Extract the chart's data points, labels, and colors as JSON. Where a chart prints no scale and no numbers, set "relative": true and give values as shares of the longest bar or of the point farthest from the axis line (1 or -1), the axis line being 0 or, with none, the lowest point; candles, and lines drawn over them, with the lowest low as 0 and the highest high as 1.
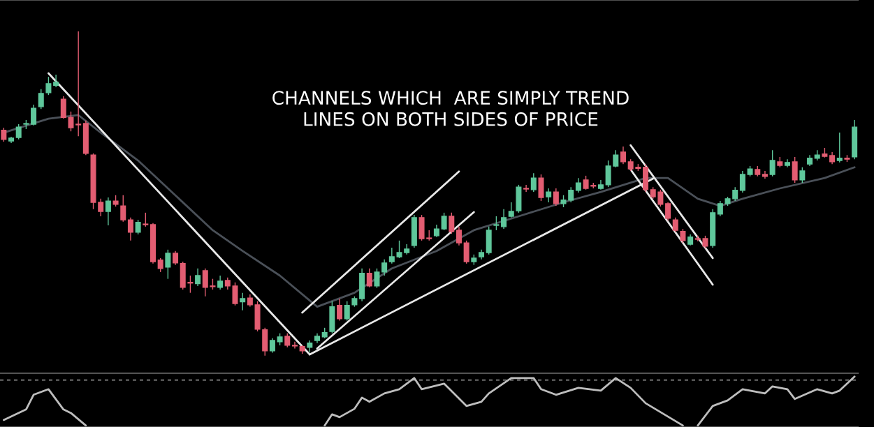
{
  "chart_data": [
    {
      "type": "candlestick",
      "relative": true,
      "annotations": [
        "CHANNELS WHICH  ARE SIMPLY TREND\nLINES ON BOTH SIDES OF PRICE"
      ],
      "categories": [
        null,
        null,
        null,
        null,
        null,
        null,
        null,
        null,
        null,
        null,
        null,
        null,
        null,
        null,
        null,
        null,
        null,
        null,
        null,
        null,
        null,
        null,
        null,
        null,
        null,
        null,
        null,
        null,
        null,
        null,
        null,
        null,
        null,
        null,
        null,
        null,
        null,
        null,
        null,
        null,
        null,
        null,
        null,
        null,
        null,
        null,
        null,
        null,
        null,
        null,
        null,
        null,
        null,
        null,
        null,
        null,
        null,
        null,
        null,
        null,
        null,
        null,
        null,
        null,
        null,
        null,
        null,
        null,
        null,
        null,
        null,
        null,
        null,
        null,
        null,
        null,
        null,
        null,
        null,
        null,
        null,
        null,
        null,
        null,
        null,
        null,
        null,
        null,
        null,
        null,
        null,
        null,
        null,
        null,
        null,
        null,
        null,
        null,
        null,
        null,
        null,
        null,
        null,
        null,
        null,
        null,
        null,
        null,
        null,
        null,
        null,
        null,
        null,
        null,
        null
      ],
      "ohlc": [
        [
          0.695,
          0.703,
          0.66,
          0.667
        ],
        [
          0.662,
          0.675,
          0.656,
          0.671
        ],
        [
          0.673,
          0.714,
          0.667,
          0.705
        ],
        [
          0.714,
          0.727,
          0.699,
          0.716
        ],
        [
          0.714,
          0.774,
          0.71,
          0.763
        ],
        [
          0.768,
          0.822,
          0.761,
          0.809
        ],
        [
          0.811,
          0.86,
          0.804,
          0.839
        ],
        [
          0.834,
          0.867,
          0.828,
          0.843
        ],
        [
          0.791,
          0.8,
          0.731,
          0.735
        ],
        [
          0.735,
          0.753,
          0.692,
          0.703
        ],
        [
          0.714,
          1.0,
          0.677,
          0.712
        ],
        [
          0.716,
          0.725,
          0.619,
          0.624
        ],
        [
          0.619,
          0.624,
          0.452,
          0.473
        ],
        [
          0.473,
          0.484,
          0.43,
          0.445
        ],
        [
          0.445,
          0.488,
          0.402,
          0.477
        ],
        [
          0.477,
          0.495,
          0.46,
          0.467
        ],
        [
          0.462,
          0.495,
          0.413,
          0.419
        ],
        [
          0.419,
          0.426,
          0.355,
          0.381
        ],
        [
          0.381,
          0.419,
          0.374,
          0.411
        ],
        [
          0.406,
          0.441,
          0.398,
          0.404
        ],
        [
          0.404,
          0.409,
          0.284,
          0.29
        ],
        [
          0.295,
          0.301,
          0.258,
          0.269
        ],
        [
          0.273,
          0.327,
          0.237,
          0.316
        ],
        [
          0.316,
          0.323,
          0.28,
          0.286
        ],
        [
          0.284,
          0.29,
          0.204,
          0.211
        ],
        [
          0.226,
          0.247,
          0.194,
          0.224
        ],
        [
          0.222,
          0.269,
          0.215,
          0.247
        ],
        [
          0.262,
          0.269,
          0.183,
          0.211
        ],
        [
          0.215,
          0.237,
          0.204,
          0.213
        ],
        [
          0.211,
          0.247,
          0.204,
          0.23
        ],
        [
          0.232,
          0.241,
          0.204,
          0.215
        ],
        [
          0.215,
          0.226,
          0.155,
          0.161
        ],
        [
          0.166,
          0.194,
          0.14,
          0.176
        ],
        [
          0.178,
          0.189,
          0.151,
          0.157
        ],
        [
          0.157,
          0.168,
          0.075,
          0.082
        ],
        [
          0.08,
          0.086,
          0.0,
          0.015
        ],
        [
          0.015,
          0.054,
          0.009,
          0.047
        ],
        [
          0.043,
          0.069,
          0.032,
          0.058
        ],
        [
          0.06,
          0.069,
          0.026,
          0.032
        ],
        [
          0.032,
          0.043,
          0.022,
          0.03
        ],
        [
          0.028,
          0.032,
          0.006,
          0.015
        ],
        [
          0.026,
          0.047,
          0.011,
          0.039
        ],
        [
          0.047,
          0.069,
          0.039,
          0.06
        ],
        [
          0.058,
          0.086,
          0.054,
          0.071
        ],
        [
          0.075,
          0.168,
          0.069,
          0.151
        ],
        [
          0.155,
          0.176,
          0.108,
          0.114
        ],
        [
          0.114,
          0.168,
          0.108,
          0.155
        ],
        [
          0.157,
          0.183,
          0.151,
          0.176
        ],
        [
          0.176,
          0.269,
          0.168,
          0.254
        ],
        [
          0.254,
          0.269,
          0.211,
          0.215
        ],
        [
          0.215,
          0.269,
          0.209,
          0.258
        ],
        [
          0.258,
          0.297,
          0.247,
          0.286
        ],
        [
          0.29,
          0.333,
          0.284,
          0.305
        ],
        [
          0.305,
          0.355,
          0.301,
          0.318
        ],
        [
          0.318,
          0.344,
          0.312,
          0.329
        ],
        [
          0.34,
          0.434,
          0.333,
          0.426
        ],
        [
          0.426,
          0.434,
          0.355,
          0.361
        ],
        [
          0.363,
          0.387,
          0.355,
          0.361
        ],
        [
          0.37,
          0.404,
          0.366,
          0.391
        ],
        [
          0.391,
          0.441,
          0.387,
          0.43
        ],
        [
          0.43,
          0.441,
          0.376,
          0.383
        ],
        [
          0.387,
          0.398,
          0.34,
          0.348
        ],
        [
          0.348,
          0.355,
          0.284,
          0.29
        ],
        [
          0.29,
          0.312,
          0.28,
          0.301
        ],
        [
          0.305,
          0.327,
          0.297,
          0.318
        ],
        [
          0.318,
          0.398,
          0.312,
          0.387
        ],
        [
          0.402,
          0.43,
          0.387,
          0.404
        ],
        [
          0.398,
          0.452,
          0.391,
          0.426
        ],
        [
          0.43,
          0.473,
          0.426,
          0.445
        ],
        [
          0.447,
          0.527,
          0.441,
          0.52
        ],
        [
          0.516,
          0.527,
          0.505,
          0.514
        ],
        [
          0.512,
          0.563,
          0.505,
          0.548
        ],
        [
          0.548,
          0.559,
          0.477,
          0.488
        ],
        [
          0.49,
          0.516,
          0.473,
          0.505
        ],
        [
          0.505,
          0.516,
          0.462,
          0.469
        ],
        [
          0.469,
          0.495,
          0.458,
          0.48
        ],
        [
          0.48,
          0.52,
          0.473,
          0.51
        ],
        [
          0.51,
          0.548,
          0.503,
          0.533
        ],
        [
          0.542,
          0.555,
          0.512,
          0.516
        ],
        [
          0.525,
          0.533,
          0.516,
          0.523
        ],
        [
          0.516,
          0.542,
          0.512,
          0.527
        ],
        [
          0.527,
          0.602,
          0.52,
          0.585
        ],
        [
          0.585,
          0.634,
          0.581,
          0.619
        ],
        [
          0.628,
          0.645,
          0.591,
          0.598
        ],
        [
          0.598,
          0.606,
          0.57,
          0.576
        ],
        [
          0.581,
          0.591,
          0.57,
          0.578
        ],
        [
          0.581,
          0.591,
          0.505,
          0.512
        ],
        [
          0.512,
          0.52,
          0.484,
          0.49
        ],
        [
          0.505,
          0.512,
          0.46,
          0.467
        ],
        [
          0.469,
          0.473,
          0.417,
          0.424
        ],
        [
          0.419,
          0.426,
          0.381,
          0.387
        ],
        [
          0.383,
          0.391,
          0.348,
          0.355
        ],
        [
          0.344,
          0.374,
          0.34,
          0.366
        ],
        [
          0.361,
          0.37,
          0.353,
          0.359
        ],
        [
          0.361,
          0.37,
          0.331,
          0.338
        ],
        [
          0.34,
          0.452,
          0.333,
          0.441
        ],
        [
          0.437,
          0.477,
          0.43,
          0.469
        ],
        [
          0.469,
          0.49,
          0.462,
          0.484
        ],
        [
          0.484,
          0.52,
          0.477,
          0.51
        ],
        [
          0.51,
          0.57,
          0.503,
          0.559
        ],
        [
          0.559,
          0.585,
          0.553,
          0.576
        ],
        [
          0.574,
          0.585,
          0.553,
          0.559
        ],
        [
          0.559,
          0.57,
          0.546,
          0.553
        ],
        [
          0.559,
          0.634,
          0.553,
          0.602
        ],
        [
          0.598,
          0.613,
          0.581,
          0.587
        ],
        [
          0.587,
          0.606,
          0.581,
          0.596
        ],
        [
          0.598,
          0.613,
          0.533,
          0.542
        ],
        [
          0.542,
          0.581,
          0.533,
          0.57
        ],
        [
          0.591,
          0.619,
          0.585,
          0.609
        ],
        [
          0.609,
          0.634,
          0.602,
          0.619
        ],
        [
          0.622,
          0.641,
          0.611,
          0.615
        ],
        [
          0.617,
          0.628,
          0.591,
          0.598
        ],
        [
          0.602,
          0.688,
          0.596,
          0.609
        ],
        [
          0.609,
          0.619,
          0.598,
          0.606
        ],
        [
          0.613,
          0.727,
          0.606,
          0.705
        ]
      ],
      "colors": [
        "#e35d72",
        "#5fc79b",
        "#5fc79b",
        "#5fc79b",
        "#5fc79b",
        "#5fc79b",
        "#5fc79b",
        "#5fc79b",
        "#e35d72",
        "#e35d72",
        "#e35d72",
        "#e35d72",
        "#e35d72",
        "#e35d72",
        "#5fc79b",
        "#e35d72",
        "#e35d72",
        "#e35d72",
        "#5fc79b",
        "#e35d72",
        "#e35d72",
        "#e35d72",
        "#5fc79b",
        "#e35d72",
        "#e35d72",
        "#e35d72",
        "#5fc79b",
        "#e35d72",
        "#e35d72",
        "#5fc79b",
        "#e35d72",
        "#e35d72",
        "#5fc79b",
        "#e35d72",
        "#e35d72",
        "#e35d72",
        "#5fc79b",
        "#5fc79b",
        "#e35d72",
        "#e35d72",
        "#e35d72",
        "#5fc79b",
        "#5fc79b",
        "#5fc79b",
        "#5fc79b",
        "#e35d72",
        "#5fc79b",
        "#5fc79b",
        "#5fc79b",
        "#e35d72",
        "#5fc79b",
        "#5fc79b",
        "#5fc79b",
        "#5fc79b",
        "#5fc79b",
        "#5fc79b",
        "#e35d72",
        "#e35d72",
        "#5fc79b",
        "#5fc79b",
        "#e35d72",
        "#e35d72",
        "#e35d72",
        "#5fc79b",
        "#5fc79b",
        "#5fc79b",
        "#5fc79b",
        "#5fc79b",
        "#5fc79b",
        "#5fc79b",
        "#e35d72",
        "#5fc79b",
        "#e35d72",
        "#5fc79b",
        "#e35d72",
        "#5fc79b",
        "#5fc79b",
        "#5fc79b",
        "#e35d72",
        "#e35d72",
        "#5fc79b",
        "#5fc79b",
        "#5fc79b",
        "#e35d72",
        "#e35d72",
        "#e35d72",
        "#e35d72",
        "#e35d72",
        "#e35d72",
        "#e35d72",
        "#e35d72",
        "#e35d72",
        "#5fc79b",
        "#e35d72",
        "#e35d72",
        "#5fc79b",
        "#5fc79b",
        "#5fc79b",
        "#5fc79b",
        "#5fc79b",
        "#5fc79b",
        "#e35d72",
        "#e35d72",
        "#5fc79b",
        "#e35d72",
        "#5fc79b",
        "#e35d72",
        "#5fc79b",
        "#5fc79b",
        "#5fc79b",
        "#e35d72",
        "#e35d72",
        "#5fc79b",
        "#e35d72",
        "#5fc79b"
      ],
      "series": [
        {
          "type": "line",
          "color": "#4a5058",
          "values": [
            0.688,
            null,
            null,
            null,
            null,
            null,
            0.731,
            null,
            null,
            null,
            0.742,
            null,
            null,
            0.688,
            null,
            null,
            null,
            null,
            0.602,
            null,
            null,
            null,
            null,
            null,
            null,
            null,
            null,
            null,
            0.387,
            null,
            null,
            null,
            0.323,
            null,
            null,
            null,
            null,
            0.247,
            null,
            null,
            null,
            null,
            0.151,
            null,
            null,
            null,
            null,
            0.194,
            null,
            null,
            null,
            null,
            0.269,
            null,
            null,
            null,
            null,
            null,
            0.323,
            null,
            null,
            null,
            null,
            0.387,
            null,
            null,
            null,
            null,
            null,
            0.43,
            null,
            null,
            null,
            null,
            null,
            0.473,
            null,
            null,
            null,
            null,
            0.505,
            null,
            null,
            null,
            null,
            null,
            0.548,
            null,
            null,
            0.548,
            null,
            null,
            null,
            0.484,
            null,
            null,
            0.462,
            null,
            null,
            0.484,
            null,
            null,
            null,
            null,
            0.516,
            null,
            null,
            null,
            null,
            null,
            0.548,
            null,
            null,
            null,
            0.581
          ]
        },
        {
          "type": "line",
          "color": "#e8e8e8",
          "values": [
            null,
            null,
            null,
            null,
            null,
            null,
            0.871,
            null,
            null,
            null,
            null,
            null,
            null,
            null,
            null,
            null,
            null,
            null,
            null,
            null,
            null,
            null,
            null,
            null,
            null,
            null,
            null,
            null,
            null,
            null,
            null,
            null,
            null,
            null,
            null,
            null,
            null,
            null,
            null,
            null,
            null,
            0.004,
            null,
            null,
            null,
            null,
            null,
            null,
            null,
            null,
            null,
            null,
            null,
            null,
            null,
            null,
            null,
            null,
            null,
            null,
            null,
            null,
            null,
            null,
            null,
            null,
            null,
            null,
            null,
            null,
            null,
            null,
            null,
            null,
            null,
            null,
            null,
            null,
            null,
            null,
            null,
            null,
            null,
            null,
            null,
            null,
            null,
            null,
            null,
            null,
            null,
            null,
            null,
            null,
            null,
            null,
            null,
            null,
            null,
            null,
            null,
            null,
            null,
            null,
            null,
            null,
            null,
            null,
            null,
            null,
            null,
            null,
            null,
            null,
            null
          ]
        },
        {
          "type": "line",
          "color": "#e8e8e8",
          "values": [
            null,
            null,
            null,
            null,
            null,
            null,
            null,
            null,
            null,
            null,
            null,
            null,
            null,
            null,
            null,
            null,
            null,
            null,
            null,
            null,
            null,
            null,
            null,
            null,
            null,
            null,
            null,
            null,
            null,
            null,
            null,
            null,
            null,
            null,
            null,
            null,
            null,
            null,
            null,
            null,
            null,
            0.004,
            null,
            null,
            null,
            null,
            null,
            null,
            null,
            null,
            null,
            null,
            null,
            null,
            null,
            null,
            null,
            null,
            null,
            null,
            null,
            null,
            null,
            null,
            null,
            null,
            null,
            null,
            null,
            null,
            null,
            null,
            null,
            null,
            null,
            null,
            null,
            null,
            null,
            null,
            null,
            null,
            null,
            null,
            null,
            null,
            null,
            0.546,
            null,
            null,
            null,
            null,
            null,
            null,
            null,
            null,
            null,
            null,
            null,
            null,
            null,
            null,
            null,
            null,
            null,
            null,
            null,
            null,
            null,
            null,
            null,
            null,
            null,
            null,
            null
          ]
        },
        {
          "type": "line",
          "color": "#e8e8e8",
          "values": [
            null,
            null,
            null,
            null,
            null,
            null,
            null,
            null,
            null,
            null,
            null,
            null,
            null,
            null,
            null,
            null,
            null,
            null,
            null,
            null,
            null,
            null,
            null,
            null,
            null,
            null,
            null,
            null,
            null,
            null,
            null,
            null,
            null,
            null,
            null,
            null,
            null,
            null,
            null,
            null,
            0.133,
            null,
            null,
            null,
            null,
            null,
            null,
            null,
            null,
            null,
            null,
            null,
            null,
            null,
            null,
            null,
            null,
            null,
            null,
            null,
            null,
            0.568,
            null,
            null,
            null,
            null,
            null,
            null,
            null,
            null,
            null,
            null,
            null,
            null,
            null,
            null,
            null,
            null,
            null,
            null,
            null,
            null,
            null,
            null,
            null,
            null,
            null,
            null,
            null,
            null,
            null,
            null,
            null,
            null,
            null,
            null,
            null,
            null,
            null,
            null,
            null,
            null,
            null,
            null,
            null,
            null,
            null,
            null,
            null,
            null,
            null,
            null,
            null,
            null,
            null
          ]
        },
        {
          "type": "line",
          "color": "#e8e8e8",
          "values": [
            null,
            null,
            null,
            null,
            null,
            null,
            null,
            null,
            null,
            null,
            null,
            null,
            null,
            null,
            null,
            null,
            null,
            null,
            null,
            null,
            null,
            null,
            null,
            null,
            null,
            null,
            null,
            null,
            null,
            null,
            null,
            null,
            null,
            null,
            null,
            null,
            null,
            null,
            null,
            null,
            null,
            null,
            0.022,
            null,
            null,
            null,
            null,
            null,
            null,
            null,
            null,
            null,
            null,
            null,
            null,
            null,
            null,
            null,
            null,
            null,
            null,
            null,
            null,
            0.443,
            null,
            null,
            null,
            null,
            null,
            null,
            null,
            null,
            null,
            null,
            null,
            null,
            null,
            null,
            null,
            null,
            null,
            null,
            null,
            null,
            null,
            null,
            null,
            null,
            null,
            null,
            null,
            null,
            null,
            null,
            null,
            null,
            null,
            null,
            null,
            null,
            null,
            null,
            null,
            null,
            null,
            null,
            null,
            null,
            null,
            null,
            null,
            null,
            null,
            null,
            null
          ]
        },
        {
          "type": "line",
          "color": "#e8e8e8",
          "values": [
            null,
            null,
            null,
            null,
            null,
            null,
            null,
            null,
            null,
            null,
            null,
            null,
            null,
            null,
            null,
            null,
            null,
            null,
            null,
            null,
            null,
            null,
            null,
            null,
            null,
            null,
            null,
            null,
            null,
            null,
            null,
            null,
            null,
            null,
            null,
            null,
            null,
            null,
            null,
            null,
            null,
            null,
            null,
            null,
            null,
            null,
            null,
            null,
            null,
            null,
            null,
            null,
            null,
            null,
            null,
            null,
            null,
            null,
            null,
            null,
            null,
            null,
            null,
            null,
            null,
            null,
            null,
            null,
            null,
            null,
            null,
            null,
            null,
            null,
            null,
            null,
            null,
            null,
            null,
            null,
            null,
            null,
            null,
            null,
            0.649,
            null,
            null,
            null,
            null,
            null,
            null,
            null,
            null,
            null,
            null,
            0.301,
            null,
            null,
            null,
            null,
            null,
            null,
            null,
            null,
            null,
            null,
            null,
            null,
            null,
            null,
            null,
            null,
            null,
            null,
            null
          ]
        },
        {
          "type": "line",
          "color": "#e8e8e8",
          "values": [
            null,
            null,
            null,
            null,
            null,
            null,
            null,
            null,
            null,
            null,
            null,
            null,
            null,
            null,
            null,
            null,
            null,
            null,
            null,
            null,
            null,
            null,
            null,
            null,
            null,
            null,
            null,
            null,
            null,
            null,
            null,
            null,
            null,
            null,
            null,
            null,
            null,
            null,
            null,
            null,
            null,
            null,
            null,
            null,
            null,
            null,
            null,
            null,
            null,
            null,
            null,
            null,
            null,
            null,
            null,
            null,
            null,
            null,
            null,
            null,
            null,
            null,
            null,
            null,
            null,
            null,
            null,
            null,
            null,
            null,
            null,
            null,
            null,
            null,
            null,
            null,
            null,
            null,
            null,
            null,
            null,
            null,
            null,
            null,
            0.574,
            null,
            null,
            null,
            null,
            null,
            null,
            null,
            null,
            null,
            null,
            0.219,
            null,
            null,
            null,
            null,
            null,
            null,
            null,
            null,
            null,
            null,
            null,
            null,
            null,
            null,
            null,
            null,
            null,
            null,
            null
          ]
        }
      ]
    },
    {
      "type": "line",
      "relative": true,
      "categories": [
        null,
        null,
        null,
        null,
        null,
        null,
        null,
        null,
        null,
        null,
        null,
        null,
        null,
        null,
        null,
        null,
        null,
        null,
        null,
        null,
        null,
        null,
        null,
        null,
        null,
        null,
        null,
        null,
        null,
        null,
        null,
        null,
        null,
        null,
        null,
        null,
        null,
        null,
        null,
        null,
        null,
        null,
        null,
        null,
        null,
        null,
        null,
        null,
        null,
        null,
        null,
        null,
        null,
        null,
        null,
        null,
        null,
        null,
        null,
        null,
        null,
        null,
        null,
        null,
        null,
        null,
        null,
        null,
        null,
        null,
        null,
        null,
        null,
        null,
        null,
        null,
        null,
        null,
        null,
        null,
        null,
        null,
        null,
        null,
        null,
        null,
        null,
        null,
        null,
        null,
        null,
        null,
        null,
        null,
        null,
        null,
        null,
        null,
        null,
        null,
        null,
        null,
        null,
        null,
        null,
        null,
        null,
        null,
        null,
        null,
        null,
        null,
        null,
        null,
        null
      ],
      "ref_lines": [
        {
          "axis": "y",
          "value": 0.929,
          "color": "#9a9a9a",
          "line_style": "dashed"
        }
      ],
      "series": [
        {
          "color": "#bdbdbd",
          "values": [
            0.114,
            null,
            null,
            0.329,
            0.629,
            null,
            0.743,
            null,
            0.329,
            0.257,
            null,
            0.0,
            null,
            null,
            null,
            null,
            null,
            null,
            null,
            null,
            null,
            null,
            null,
            null,
            null,
            null,
            null,
            null,
            null,
            null,
            null,
            null,
            null,
            null,
            null,
            null,
            null,
            null,
            null,
            null,
            null,
            null,
            null,
            null,
            null,
            null,
            null,
            null,
            null,
            null,
            null,
            null,
            null,
            null,
            null,
            null,
            null,
            null,
            null,
            null,
            null,
            null,
            null,
            null,
            null,
            null,
            null,
            null,
            null,
            null,
            null,
            null,
            null,
            null,
            null,
            null,
            null,
            null,
            null,
            null,
            null,
            null,
            null,
            null,
            null,
            null,
            null,
            null,
            null,
            null,
            null,
            null,
            null,
            null,
            null,
            null,
            null,
            null,
            null,
            null,
            null,
            null,
            null,
            null,
            null,
            null,
            null,
            null,
            null,
            null,
            null,
            null,
            null,
            null,
            null
          ]
        },
        {
          "color": "#bdbdbd",
          "values": [
            null,
            null,
            null,
            null,
            null,
            null,
            null,
            null,
            null,
            null,
            null,
            null,
            null,
            null,
            null,
            null,
            null,
            null,
            null,
            null,
            null,
            null,
            null,
            null,
            null,
            null,
            null,
            null,
            null,
            null,
            null,
            null,
            null,
            null,
            null,
            null,
            null,
            null,
            null,
            null,
            null,
            null,
            null,
            0.0,
            0.229,
            0.171,
            null,
            0.343,
            0.571,
            0.486,
            null,
            0.657,
            null,
            0.743,
            null,
            0.971,
            0.743,
            null,
            null,
            0.857,
            null,
            null,
            0.4,
            null,
            0.486,
            0.657,
            null,
            null,
            0.971,
            null,
            null,
            0.971,
            0.743,
            null,
            0.629,
            null,
            null,
            0.771,
            null,
            null,
            0.714,
            null,
            0.971,
            null,
            0.771,
            null,
            0.457,
            null,
            null,
            null,
            null,
            0.0,
            null,
            null,
            null,
            null,
            null,
            null,
            null,
            null,
            null,
            null,
            null,
            null,
            null,
            null,
            null,
            null,
            null,
            null,
            null,
            null,
            null,
            null,
            null
          ]
        },
        {
          "color": "#bdbdbd",
          "values": [
            null,
            null,
            null,
            null,
            null,
            null,
            null,
            null,
            null,
            null,
            null,
            null,
            null,
            null,
            null,
            null,
            null,
            null,
            null,
            null,
            null,
            null,
            null,
            null,
            null,
            null,
            null,
            null,
            null,
            null,
            null,
            null,
            null,
            null,
            null,
            null,
            null,
            null,
            null,
            null,
            null,
            null,
            null,
            null,
            null,
            null,
            null,
            null,
            null,
            null,
            null,
            null,
            null,
            null,
            null,
            null,
            null,
            null,
            null,
            null,
            null,
            null,
            null,
            null,
            null,
            null,
            null,
            null,
            null,
            null,
            null,
            null,
            null,
            null,
            null,
            null,
            null,
            null,
            null,
            null,
            null,
            null,
            null,
            null,
            null,
            null,
            null,
            null,
            null,
            null,
            null,
            null,
            null,
            0.0,
            null,
            0.4,
            null,
            0.514,
            null,
            0.743,
            null,
            null,
            0.657,
            0.8,
            null,
            0.743,
            0.543,
            null,
            null,
            0.743,
            null,
            0.657,
            0.714,
            null,
            1.0
          ]
        }
      ]
    }
  ]
}
